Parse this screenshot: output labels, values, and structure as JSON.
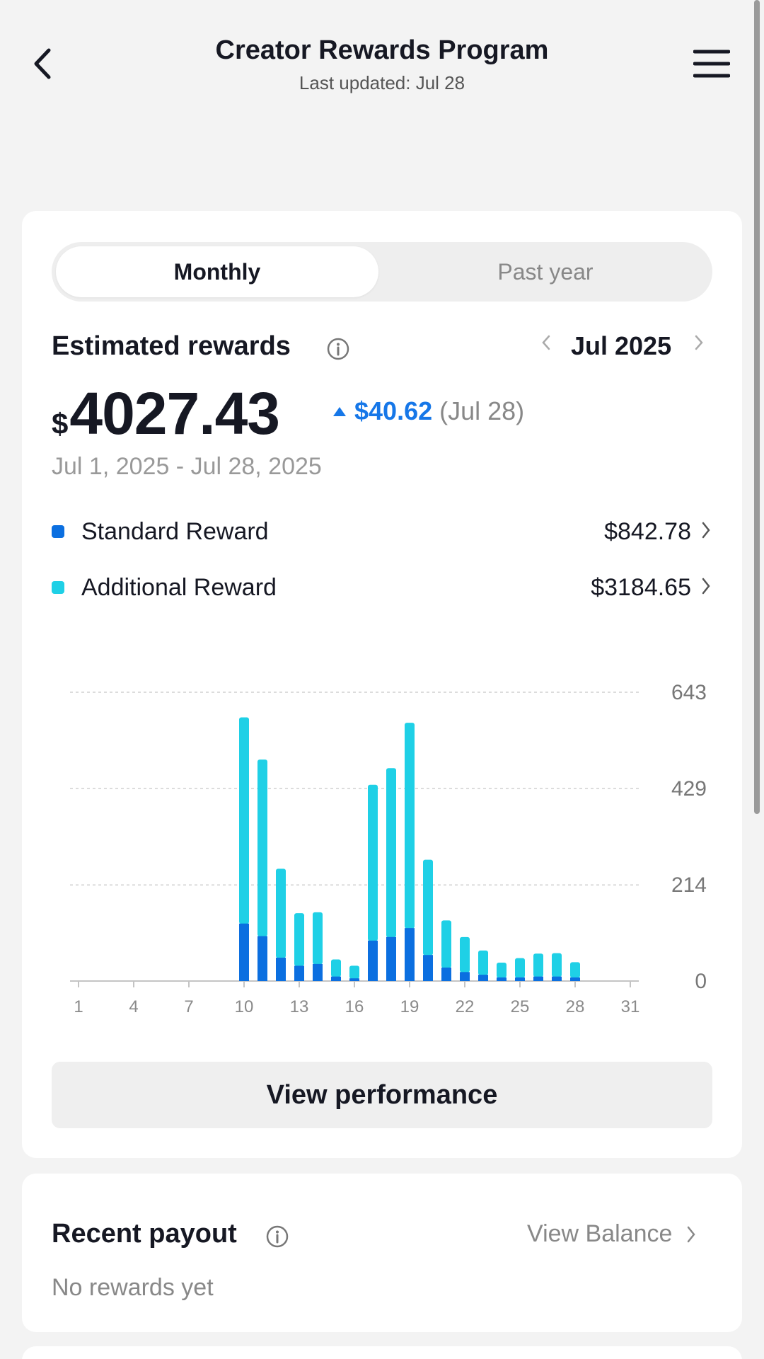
{
  "header": {
    "title": "Creator Rewards Program",
    "subtitle": "Last updated: Jul 28"
  },
  "tabs": [
    {
      "label": "Monthly",
      "active": true
    },
    {
      "label": "Past year",
      "active": false
    }
  ],
  "estimated": {
    "title": "Estimated rewards",
    "month": "Jul 2025",
    "currency": "$",
    "total": "4027.43",
    "delta": "$40.62",
    "delta_date": "(Jul 28)",
    "range": "Jul 1, 2025 - Jul 28, 2025"
  },
  "legend": [
    {
      "name": "Standard Reward",
      "value": "$842.78",
      "color": "#0b6fe0"
    },
    {
      "name": "Additional Reward",
      "value": "$3184.65",
      "color": "#1fd0e6"
    }
  ],
  "chart_data": {
    "type": "bar",
    "stacked": true,
    "x_ticks": [
      "1",
      "4",
      "7",
      "10",
      "13",
      "16",
      "19",
      "22",
      "25",
      "28",
      "31"
    ],
    "y_ticks": [
      "643",
      "429",
      "214",
      "0"
    ],
    "ylim": [
      0,
      643
    ],
    "categories": [
      1,
      2,
      3,
      4,
      5,
      6,
      7,
      8,
      9,
      10,
      11,
      12,
      13,
      14,
      15,
      16,
      17,
      18,
      19,
      20,
      21,
      22,
      23,
      24,
      25,
      26,
      27,
      28,
      29,
      30,
      31
    ],
    "series": [
      {
        "name": "Standard Reward",
        "color": "#0b6fe0",
        "values": [
          0,
          0,
          0,
          0,
          0,
          0,
          0,
          0,
          0,
          128,
          100,
          52,
          34,
          38,
          10,
          6,
          90,
          98,
          118,
          58,
          30,
          20,
          14,
          8,
          8,
          10,
          10,
          8,
          0,
          0,
          0
        ]
      },
      {
        "name": "Additional Reward",
        "color": "#1fd0e6",
        "values": [
          0,
          0,
          0,
          0,
          0,
          0,
          0,
          0,
          0,
          459,
          393,
          198,
          117,
          115,
          38,
          28,
          347,
          376,
          457,
          212,
          105,
          78,
          54,
          33,
          43,
          51,
          52,
          34,
          0,
          0,
          0
        ]
      }
    ]
  },
  "actions": {
    "view_performance": "View performance"
  },
  "payout": {
    "title": "Recent payout",
    "balance_link": "View Balance",
    "empty": "No rewards yet"
  }
}
